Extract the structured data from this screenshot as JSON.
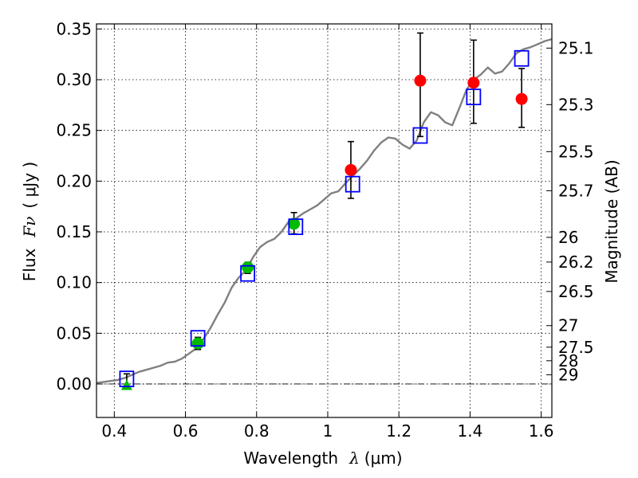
{
  "chart_data": {
    "type": "scatter",
    "title": "",
    "xlabel_prefix": "Wavelength",
    "xlabel_symbol": "λ",
    "xlabel_unit": "(μm)",
    "ylabel_prefix": "Flux",
    "ylabel_symbol": "Fν",
    "ylabel_unit": "( μJy )",
    "y2label": "Magnitude (AB)",
    "xlim": [
      0.35,
      1.63
    ],
    "ylim": [
      -0.033,
      0.355
    ],
    "grid": true,
    "x_ticks": [
      0.4,
      0.6,
      0.8,
      1.0,
      1.2,
      1.4,
      1.6
    ],
    "x_tick_labels": [
      "0.4",
      "0.6",
      "0.8",
      "1",
      "1.2",
      "1.4",
      "1.6"
    ],
    "y_ticks": [
      0.0,
      0.05,
      0.1,
      0.15,
      0.2,
      0.25,
      0.3,
      0.35
    ],
    "y_tick_labels": [
      "0.00",
      "0.05",
      "0.10",
      "0.15",
      "0.20",
      "0.25",
      "0.30",
      "0.35"
    ],
    "mag_ticks": [
      25.1,
      25.3,
      25.5,
      25.7,
      26,
      26.2,
      26.5,
      27,
      27.5,
      28,
      29
    ],
    "mag_tick_labels": [
      "25.1",
      "25.3",
      "25.5",
      "25.7",
      "26",
      "26.2",
      "26.5",
      "27",
      "27.5",
      "28",
      "29"
    ],
    "zeropoint_ab_ujy": 23.9,
    "colors": {
      "model_line": "#808080",
      "observed_red": "#ff0000",
      "observed_green": "#00bb00",
      "model_box": "#0000ff",
      "errorbar": "#000000"
    },
    "series": [
      {
        "name": "model_spectrum",
        "style": "line",
        "x": [
          0.35,
          0.37,
          0.39,
          0.41,
          0.43,
          0.45,
          0.47,
          0.49,
          0.51,
          0.53,
          0.55,
          0.57,
          0.59,
          0.61,
          0.63,
          0.65,
          0.67,
          0.69,
          0.71,
          0.73,
          0.75,
          0.77,
          0.79,
          0.81,
          0.83,
          0.85,
          0.87,
          0.89,
          0.91,
          0.93,
          0.95,
          0.97,
          0.99,
          1.01,
          1.03,
          1.05,
          1.07,
          1.09,
          1.11,
          1.13,
          1.15,
          1.17,
          1.19,
          1.21,
          1.23,
          1.25,
          1.27,
          1.29,
          1.31,
          1.33,
          1.35,
          1.37,
          1.39,
          1.41,
          1.43,
          1.45,
          1.47,
          1.49,
          1.51,
          1.53,
          1.55,
          1.57,
          1.59,
          1.61,
          1.63
        ],
        "y": [
          0.001,
          0.002,
          0.003,
          0.004,
          0.006,
          0.009,
          0.012,
          0.014,
          0.016,
          0.018,
          0.021,
          0.022,
          0.025,
          0.03,
          0.035,
          0.044,
          0.055,
          0.068,
          0.08,
          0.095,
          0.105,
          0.112,
          0.125,
          0.135,
          0.14,
          0.143,
          0.15,
          0.16,
          0.163,
          0.168,
          0.172,
          0.176,
          0.182,
          0.188,
          0.19,
          0.198,
          0.205,
          0.212,
          0.22,
          0.23,
          0.238,
          0.243,
          0.242,
          0.236,
          0.232,
          0.24,
          0.258,
          0.268,
          0.265,
          0.258,
          0.255,
          0.272,
          0.29,
          0.3,
          0.305,
          0.312,
          0.306,
          0.308,
          0.316,
          0.326,
          0.33,
          0.332,
          0.335,
          0.338,
          0.34
        ]
      },
      {
        "name": "observed_red",
        "style": "circle",
        "x": [
          1.065,
          1.26,
          1.41,
          1.545
        ],
        "y": [
          0.211,
          0.299,
          0.297,
          0.281
        ],
        "err_low": [
          0.028,
          0.055,
          0.04,
          0.028
        ],
        "err_high": [
          0.028,
          0.047,
          0.042,
          0.03
        ]
      },
      {
        "name": "observed_green",
        "style": "circle",
        "x": [
          0.635,
          0.775,
          0.905
        ],
        "y": [
          0.04,
          0.115,
          0.158
        ],
        "err_low": [
          0.006,
          0.006,
          0.01
        ],
        "err_high": [
          0.006,
          0.005,
          0.011
        ]
      },
      {
        "name": "observed_green_upper_limit",
        "style": "triangle",
        "x": [
          0.435
        ],
        "y": [
          -0.002
        ],
        "err_low": [
          0.0
        ],
        "err_high": [
          0.012
        ]
      },
      {
        "name": "model_synthetic_photometry",
        "style": "square",
        "x": [
          0.435,
          0.635,
          0.775,
          0.91,
          1.07,
          1.26,
          1.41,
          1.545
        ],
        "y": [
          0.005,
          0.045,
          0.109,
          0.155,
          0.197,
          0.245,
          0.283,
          0.321
        ]
      }
    ]
  }
}
